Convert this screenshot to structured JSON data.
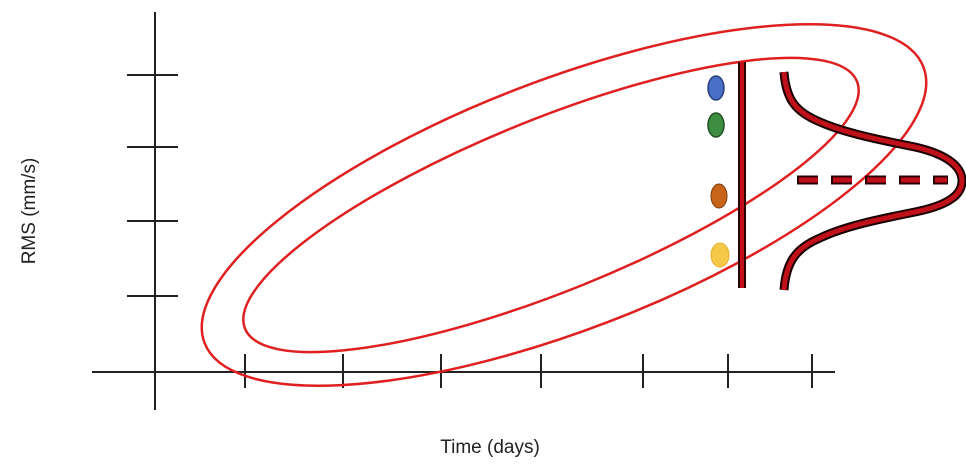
{
  "axes": {
    "x_label": "Time (days)",
    "y_label": "RMS (mm/s)",
    "x_tick_count": 7,
    "y_tick_count": 4,
    "axis_color": "#222222"
  },
  "confidence_band": {
    "stroke_color": "#e02020",
    "shape": "nested ellipses (outer and inner)"
  },
  "measurements": [
    {
      "name": "blue",
      "color": "#4a6fc9"
    },
    {
      "name": "green",
      "color": "#3e8e41"
    },
    {
      "name": "orange",
      "color": "#c8641a"
    },
    {
      "name": "yellow",
      "color": "#f5c84a"
    }
  ],
  "threshold_line": {
    "color": "#c0101a",
    "outline": "#2a0000"
  },
  "distribution_curve": {
    "color": "#c0101a",
    "outline": "#1a0000",
    "orientation": "vertical bell curve"
  },
  "mean_marker": {
    "style": "dashed",
    "color": "#c0101a"
  }
}
